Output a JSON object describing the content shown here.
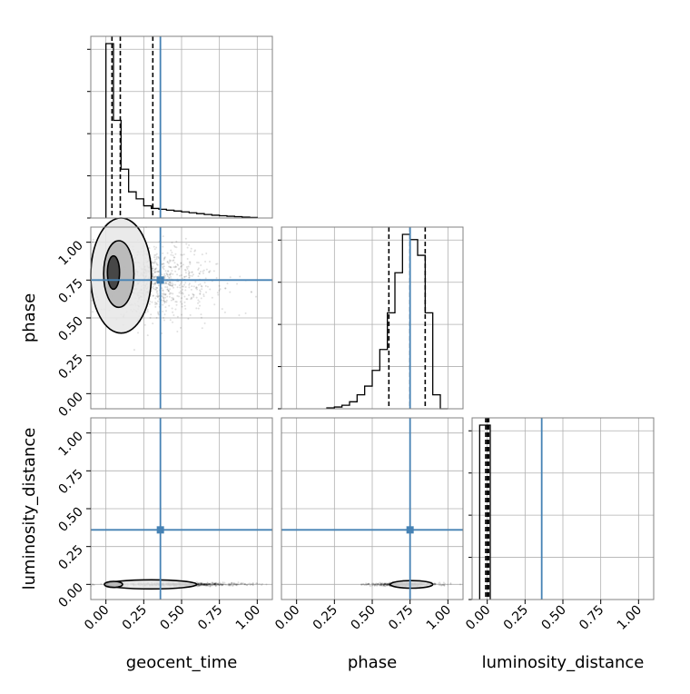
{
  "chart_data": {
    "type": "corner",
    "parameters": [
      "geocent_time",
      "phase",
      "luminosity_distance"
    ],
    "tick_labels": [
      "0.00",
      "0.25",
      "0.50",
      "0.75",
      "1.00"
    ],
    "ticks": [
      0,
      0.25,
      0.5,
      0.75,
      1.0
    ],
    "axis_range": [
      -0.1,
      1.1
    ],
    "truth": {
      "geocent_time": 0.36,
      "phase": 0.75,
      "luminosity_distance": 0.36
    },
    "grid": true,
    "truth_color": "#4682b4",
    "histograms": [
      {
        "parameter": "geocent_time",
        "bin_edges": [
          0.0,
          0.05,
          0.1,
          0.15,
          0.2,
          0.25,
          0.3,
          0.35,
          0.4,
          0.45,
          0.5,
          0.55,
          0.6,
          0.65,
          0.7,
          0.75,
          0.8,
          0.85,
          0.9,
          0.95,
          1.0
        ],
        "counts": [
          1.0,
          0.56,
          0.28,
          0.15,
          0.11,
          0.07,
          0.055,
          0.05,
          0.045,
          0.04,
          0.035,
          0.03,
          0.025,
          0.02,
          0.016,
          0.013,
          0.01,
          0.008,
          0.005,
          0.003
        ],
        "quantiles": [
          0.04,
          0.095,
          0.31
        ]
      },
      {
        "parameter": "phase",
        "bin_edges": [
          0.2,
          0.25,
          0.3,
          0.35,
          0.4,
          0.45,
          0.5,
          0.55,
          0.6,
          0.65,
          0.7,
          0.75,
          0.8,
          0.85,
          0.9,
          0.95,
          1.0
        ],
        "counts": [
          0.005,
          0.01,
          0.02,
          0.04,
          0.08,
          0.13,
          0.22,
          0.34,
          0.55,
          0.78,
          1.0,
          0.97,
          0.88,
          0.55,
          0.08,
          0.0
        ],
        "quantiles": [
          0.61,
          0.75,
          0.85
        ]
      },
      {
        "parameter": "luminosity_distance",
        "bin_edges": [
          -0.05,
          0.0,
          0.02
        ],
        "counts": [
          1.0,
          1.0
        ],
        "quantiles": [
          -0.01,
          0.0,
          0.01
        ]
      }
    ],
    "density_2d": [
      {
        "x": "geocent_time",
        "y": "phase",
        "contour_levels": [
          {
            "cx": 0.1,
            "cy": 0.78,
            "rx": 0.2,
            "ry": 0.38
          },
          {
            "cx": 0.085,
            "cy": 0.79,
            "rx": 0.1,
            "ry": 0.22
          },
          {
            "cx": 0.05,
            "cy": 0.8,
            "rx": 0.04,
            "ry": 0.11
          }
        ],
        "scatter_center": [
          0.3,
          0.74
        ],
        "scatter_spread": [
          0.25,
          0.12
        ]
      },
      {
        "x": "geocent_time",
        "y": "luminosity_distance",
        "contour_levels": [
          {
            "cx": 0.3,
            "cy": 0.0,
            "rx": 0.3,
            "ry": 0.03
          },
          {
            "cx": 0.05,
            "cy": 0.0,
            "rx": 0.06,
            "ry": 0.02
          }
        ],
        "scatter_center": [
          0.5,
          0.0
        ],
        "scatter_spread": [
          0.25,
          0.005
        ]
      },
      {
        "x": "phase",
        "y": "luminosity_distance",
        "contour_levels": [
          {
            "cx": 0.76,
            "cy": 0.0,
            "rx": 0.14,
            "ry": 0.025
          }
        ],
        "scatter_center": [
          0.72,
          0.0
        ],
        "scatter_spread": [
          0.12,
          0.005
        ]
      }
    ]
  }
}
